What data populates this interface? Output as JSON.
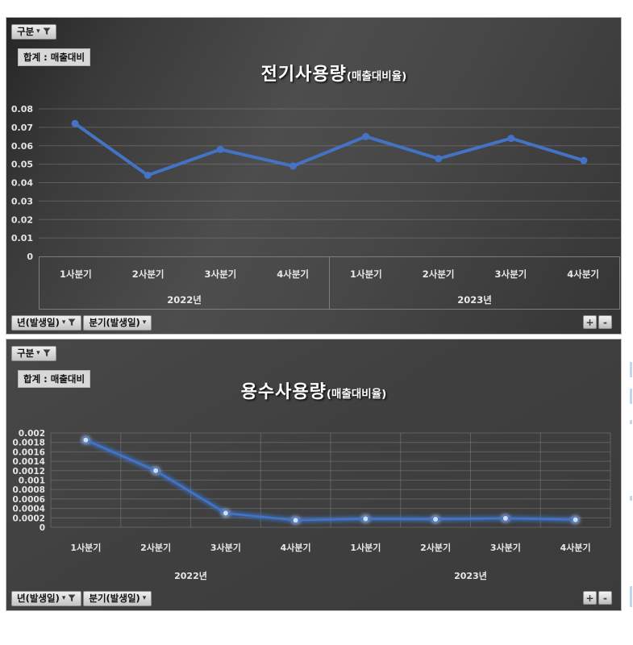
{
  "ui": {
    "category_filter_label": "구분",
    "dropdown_arrow": "▾",
    "value_field_label": "합계 : 매출대비",
    "year_field_button": "년(발생일)",
    "quarter_field_button": "분기(발생일)",
    "expand_button": "+",
    "collapse_button": "-"
  },
  "colors": {
    "electricity_line": "#4472c4",
    "water_line": "#3f74c9",
    "water_marker": "#cfe0f5",
    "gridline": "#8a8a8a",
    "axis_text": "#e4e4e4"
  },
  "chart_data": [
    {
      "type": "line",
      "title": "전기사용량",
      "title_suffix": "(매출대비율)",
      "series_name": "합계 : 매출대비",
      "categories": [
        "1사분기",
        "2사분기",
        "3사분기",
        "4사분기",
        "1사분기",
        "2사분기",
        "3사분기",
        "4사분기"
      ],
      "year_groups": [
        {
          "label": "2022년",
          "span": 4
        },
        {
          "label": "2023년",
          "span": 4
        }
      ],
      "values": [
        0.072,
        0.044,
        0.058,
        0.049,
        0.065,
        0.053,
        0.064,
        0.052
      ],
      "ylim": [
        0,
        0.08
      ],
      "ytick_step": 0.01,
      "grid": "horizontal",
      "legend": "none",
      "line_color": "#4472c4",
      "marker_color": "#4472c4",
      "glow": false
    },
    {
      "type": "line",
      "title": "용수사용량",
      "title_suffix": "(매출대비율)",
      "series_name": "합계 : 매출대비",
      "categories": [
        "1사분기",
        "2사분기",
        "3사분기",
        "4사분기",
        "1사분기",
        "2사분기",
        "3사분기",
        "4사분기"
      ],
      "year_groups": [
        {
          "label": "2022년",
          "span": 4
        },
        {
          "label": "2023년",
          "span": 4
        }
      ],
      "values": [
        0.00185,
        0.0012,
        0.0003,
        0.00015,
        0.00018,
        0.00017,
        0.00019,
        0.00016
      ],
      "ylim": [
        0,
        0.002
      ],
      "ytick_step": 0.0002,
      "grid": "full",
      "legend": "none",
      "line_color": "#3f74c9",
      "marker_color": "#cfe0f5",
      "glow": true
    }
  ]
}
